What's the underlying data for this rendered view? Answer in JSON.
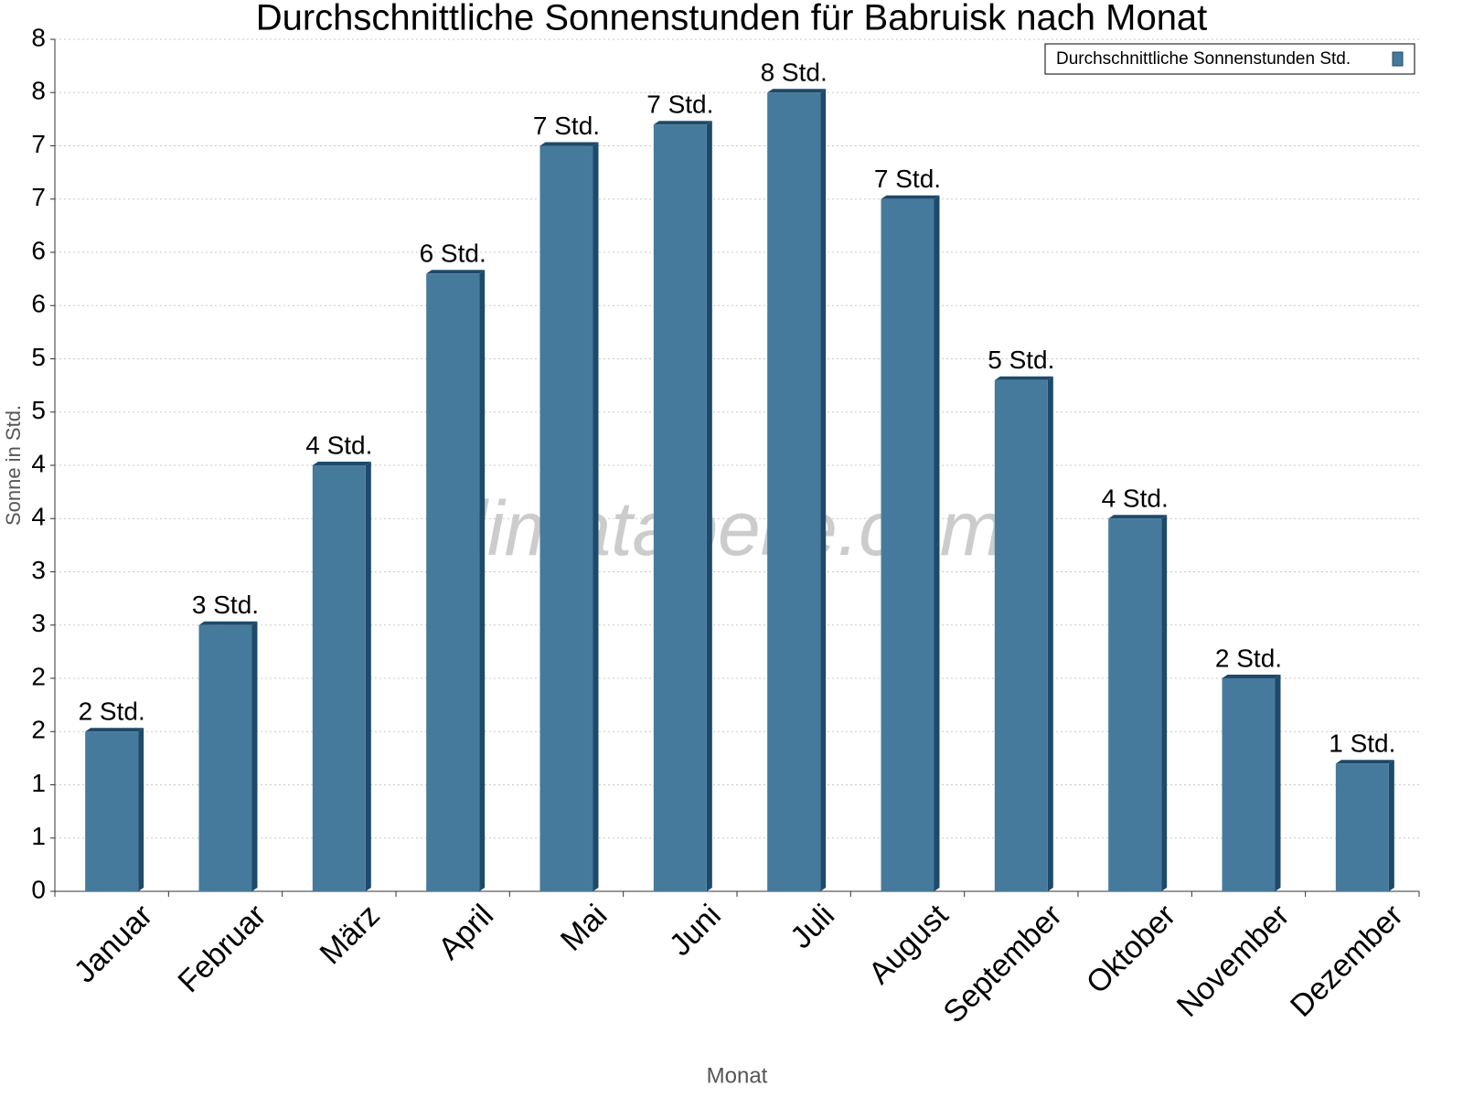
{
  "chart_data": {
    "type": "bar",
    "title": "Durchschnittliche Sonnenstunden für Babruisk nach Monat",
    "x_label": "Monat",
    "y_label": "Sonne in Std.",
    "watermark": "klimatabelle.com",
    "categories": [
      "Januar",
      "Februar",
      "März",
      "April",
      "Mai",
      "Juni",
      "Juli",
      "August",
      "September",
      "Oktober",
      "November",
      "Dezember"
    ],
    "series": [
      {
        "name": "Durchschnittliche Sonnenstunden Std.",
        "color": "#467a9c",
        "values": [
          1.5,
          2.5,
          4.0,
          5.8,
          7.0,
          7.2,
          7.5,
          6.5,
          4.8,
          3.5,
          2.0,
          1.2
        ],
        "value_labels": [
          "2 Std.",
          "3 Std.",
          "4 Std.",
          "6 Std.",
          "7 Std.",
          "7 Std.",
          "8 Std.",
          "7 Std.",
          "5 Std.",
          "4 Std.",
          "2 Std.",
          "1 Std."
        ]
      }
    ],
    "ylim": [
      0,
      8
    ],
    "yticks": [
      0,
      {
        "value": 0.5,
        "label": "1"
      },
      1,
      {
        "value": 1.5,
        "label": "2"
      },
      2,
      {
        "value": 2.5,
        "label": "3"
      },
      3,
      {
        "value": 3.5,
        "label": "4"
      },
      4,
      {
        "value": 4.5,
        "label": "5"
      },
      5,
      {
        "value": 5.5,
        "label": "6"
      },
      6,
      {
        "value": 6.5,
        "label": "7"
      },
      7,
      {
        "value": 7.5,
        "label": "8"
      },
      8
    ],
    "grid": true,
    "legend": "top-right"
  }
}
